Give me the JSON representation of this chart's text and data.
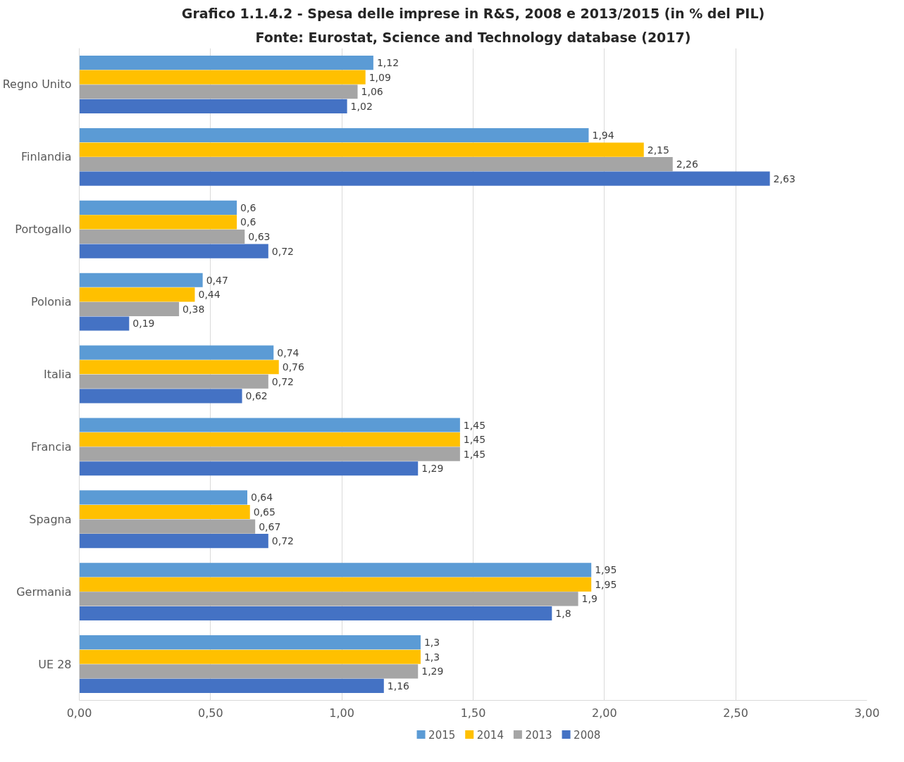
{
  "chart_data": {
    "type": "bar",
    "orientation": "horizontal",
    "title": "Grafico 1.1.4.2 - Spesa delle imprese in R&S, 2008 e 2013/2015 (in % del PIL)",
    "subtitle": "Fonte: Eurostat, Science and Technology database (2017)",
    "categories": [
      "Regno Unito",
      "Finlandia",
      "Portogallo",
      "Polonia",
      "Italia",
      "Francia",
      "Spagna",
      "Germania",
      "UE 28"
    ],
    "series": [
      {
        "name": "2015",
        "color": "#5b9bd5",
        "values": [
          1.12,
          1.94,
          0.6,
          0.47,
          0.74,
          1.45,
          0.64,
          1.95,
          1.3
        ],
        "value_labels": [
          "1,12",
          "1,94",
          "0,6",
          "0,47",
          "0,74",
          "1,45",
          "0,64",
          "1,95",
          "1,3"
        ]
      },
      {
        "name": "2014",
        "color": "#ffc000",
        "values": [
          1.09,
          2.15,
          0.6,
          0.44,
          0.76,
          1.45,
          0.65,
          1.95,
          1.3
        ],
        "value_labels": [
          "1,09",
          "2,15",
          "0,6",
          "0,44",
          "0,76",
          "1,45",
          "0,65",
          "1,95",
          "1,3"
        ]
      },
      {
        "name": "2013",
        "color": "#a5a5a5",
        "values": [
          1.06,
          2.26,
          0.63,
          0.38,
          0.72,
          1.45,
          0.67,
          1.9,
          1.29
        ],
        "value_labels": [
          "1,06",
          "2,26",
          "0,63",
          "0,38",
          "0,72",
          "1,45",
          "0,67",
          "1,9",
          "1,29"
        ]
      },
      {
        "name": "2008",
        "color": "#4472c4",
        "values": [
          1.02,
          2.63,
          0.72,
          0.19,
          0.62,
          1.29,
          0.72,
          1.8,
          1.16
        ],
        "value_labels": [
          "1,02",
          "2,63",
          "0,72",
          "0,19",
          "0,62",
          "1,29",
          "0,72",
          "1,8",
          "1,16"
        ]
      }
    ],
    "xlim": [
      0,
      3
    ],
    "xticks": [
      {
        "value": 0,
        "label": "0,00"
      },
      {
        "value": 0.5,
        "label": "0,50"
      },
      {
        "value": 1,
        "label": "1,00"
      },
      {
        "value": 1.5,
        "label": "1,50"
      },
      {
        "value": 2,
        "label": "2,00"
      },
      {
        "value": 2.5,
        "label": "2,50"
      },
      {
        "value": 3,
        "label": "3,00"
      }
    ],
    "grid": "x",
    "legend": "bottom"
  }
}
